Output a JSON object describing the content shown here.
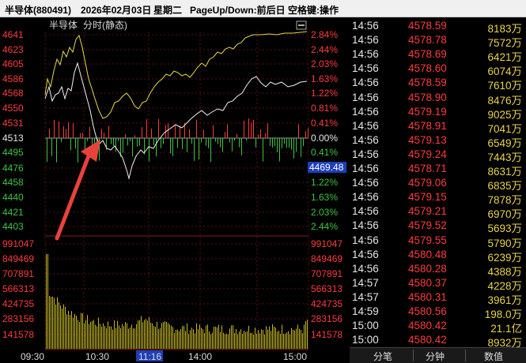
{
  "titlebar": {
    "name": "半导体(880491)",
    "date": "2026年02月03日",
    "weekday": "星期二",
    "hint": "PageUp/Down:前后日 空格键:操作"
  },
  "chart": {
    "panel_title": "分时(静态)",
    "panel_name": "半导体",
    "price_labels": [
      "4641",
      "4623",
      "4605",
      "4586",
      "4568",
      "4550",
      "4531",
      "4513",
      "4495",
      "4476",
      "4458",
      "4440",
      "4421",
      "4403"
    ],
    "pct_labels": [
      "2.84%",
      "2.44%",
      "2.03%",
      "1.63%",
      "1.22%",
      "0.81%",
      "0.41%",
      "0.00%",
      "0.41%",
      "1.22%",
      "1.63%",
      "2.03%",
      "2.44%"
    ],
    "price_box": "4469.48",
    "volume_labels": [
      "991047",
      "849469",
      "707891",
      "566313",
      "424735",
      "283156",
      "141578"
    ],
    "time_labels": [
      "09:30",
      "10:30",
      "11:16",
      "14:00",
      "15:00"
    ],
    "colors": {
      "up": "#ff3b3b",
      "down": "#3ec43e",
      "accent": "#d4c426"
    }
  },
  "ticks": [
    {
      "time": "14:56",
      "price": "4578.59",
      "vol": "8183万"
    },
    {
      "time": "14:56",
      "price": "4578.78",
      "vol": "7572万"
    },
    {
      "time": "14:56",
      "price": "4578.69",
      "vol": "6421万"
    },
    {
      "time": "14:56",
      "price": "4578.60",
      "vol": "6074万"
    },
    {
      "time": "14:56",
      "price": "4578.59",
      "vol": "7610万"
    },
    {
      "time": "14:56",
      "price": "4578.90",
      "vol": "8476万"
    },
    {
      "time": "14:56",
      "price": "4579.19",
      "vol": "9025万"
    },
    {
      "time": "14:56",
      "price": "4578.91",
      "vol": "7041万"
    },
    {
      "time": "14:56",
      "price": "4579.13",
      "vol": "6549万"
    },
    {
      "time": "14:56",
      "price": "4579.24",
      "vol": "7443万"
    },
    {
      "time": "14:56",
      "price": "4578.71",
      "vol": "8631万"
    },
    {
      "time": "14:56",
      "price": "4579.06",
      "vol": "6835万"
    },
    {
      "time": "14:56",
      "price": "4579.15",
      "vol": "7878万"
    },
    {
      "time": "14:56",
      "price": "4579.21",
      "vol": "6970万"
    },
    {
      "time": "14:56",
      "price": "4579.52",
      "vol": "5693万"
    },
    {
      "time": "14:56",
      "price": "4579.55",
      "vol": "5790万"
    },
    {
      "time": "14:56",
      "price": "4580.48",
      "vol": "6239万"
    },
    {
      "time": "14:56",
      "price": "4580.28",
      "vol": "4388万"
    },
    {
      "time": "14:57",
      "price": "4580.37",
      "vol": "4228万"
    },
    {
      "time": "14:57",
      "price": "4580.31",
      "vol": "3961万"
    },
    {
      "time": "14:59",
      "price": "4580.56",
      "vol": "198.0万"
    },
    {
      "time": "15:00",
      "price": "4580.42",
      "vol": "21.1亿"
    },
    {
      "time": "15:00",
      "price": "4580.42",
      "vol": "8932万"
    }
  ],
  "tabs": [
    "分笔",
    "分钟",
    "数值"
  ]
}
